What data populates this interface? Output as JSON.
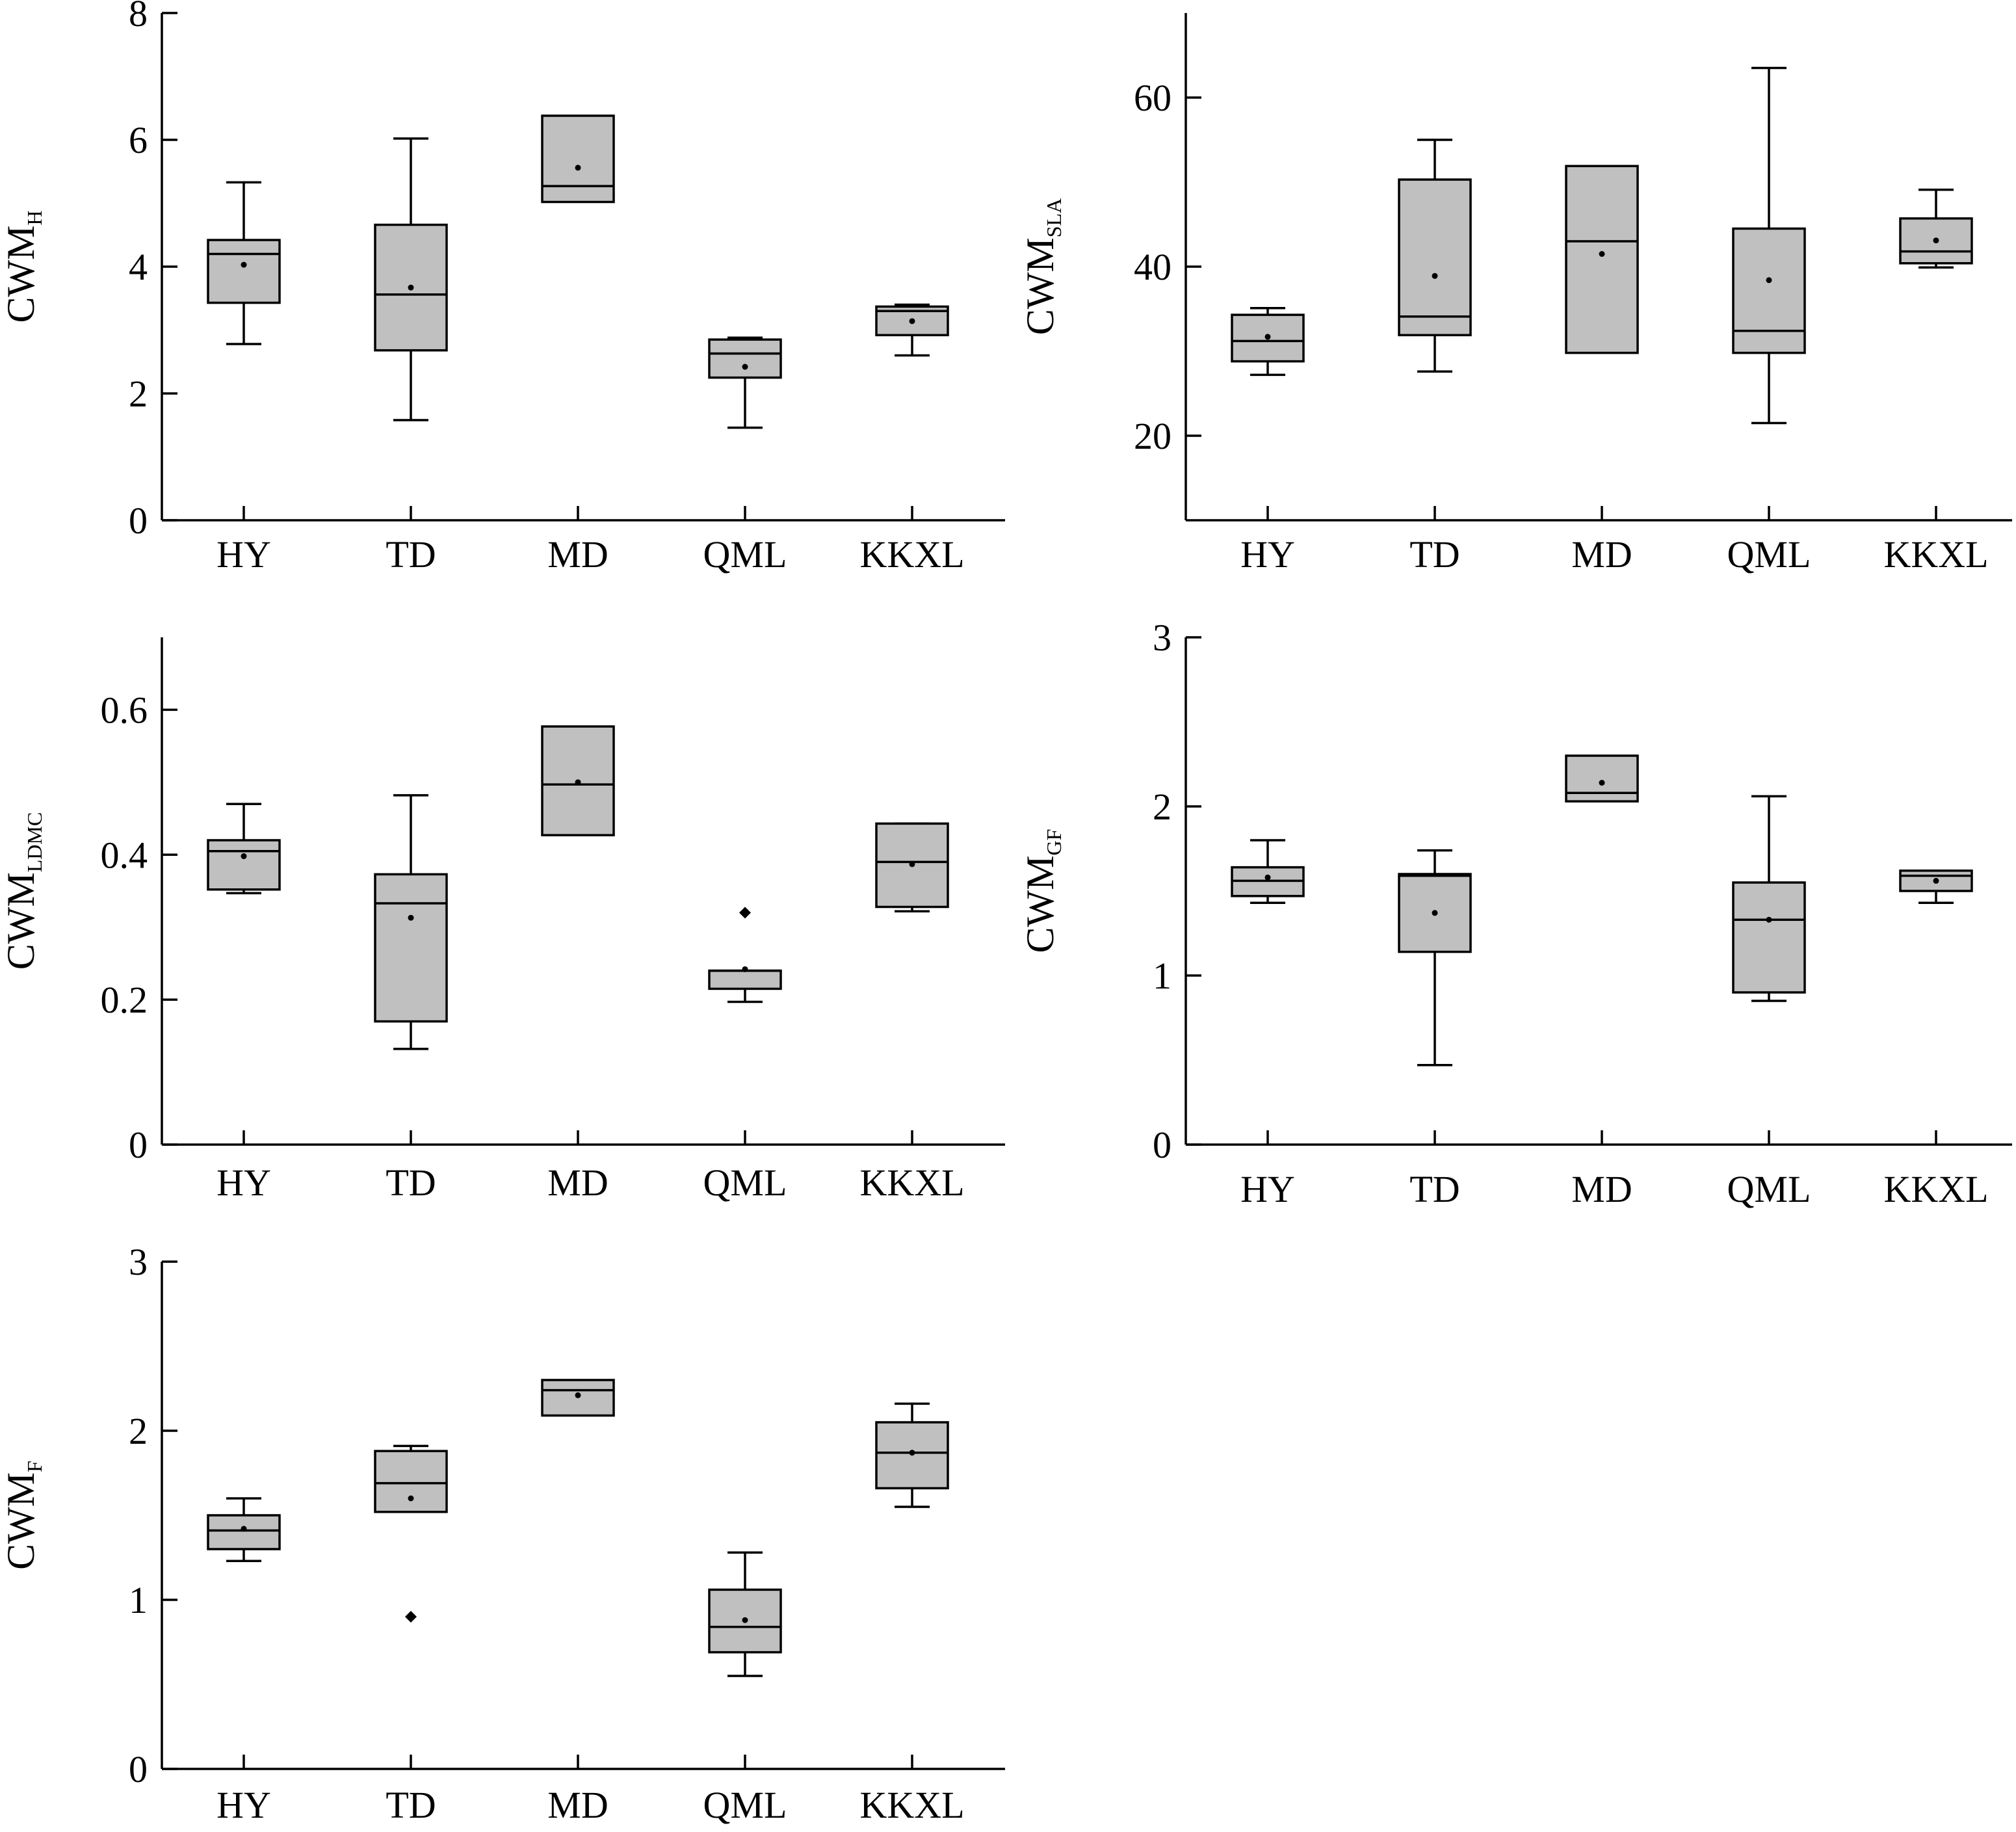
{
  "chart_data": [
    {
      "type": "box",
      "ylabel": "CWM",
      "ylabel_sub": "H",
      "ylim": [
        0,
        8
      ],
      "yticks": [
        0,
        2,
        4,
        6,
        8
      ],
      "categories": [
        "HY",
        "TD",
        "MD",
        "QML",
        "KKXL"
      ],
      "boxes": [
        {
          "min": 2.78,
          "q1": 3.43,
          "median": 4.2,
          "q3": 4.42,
          "max": 5.33,
          "mean": 4.03,
          "outliers": []
        },
        {
          "min": 1.58,
          "q1": 2.68,
          "median": 3.56,
          "q3": 4.66,
          "max": 6.02,
          "mean": 3.67,
          "outliers": []
        },
        {
          "min": null,
          "q1": 5.02,
          "median": 5.27,
          "q3": 6.38,
          "max": null,
          "mean": 5.56,
          "outliers": []
        },
        {
          "min": 1.46,
          "q1": 2.25,
          "median": 2.63,
          "q3": 2.85,
          "max": 2.88,
          "mean": 2.42,
          "outliers": []
        },
        {
          "min": 2.6,
          "q1": 2.92,
          "median": 3.3,
          "q3": 3.37,
          "max": 3.4,
          "mean": 3.14,
          "outliers": []
        }
      ]
    },
    {
      "type": "box",
      "ylabel": "CWM",
      "ylabel_sub": "SLA",
      "ylim": [
        10,
        70
      ],
      "yticks": [
        20,
        40,
        60
      ],
      "categories": [
        "HY",
        "TD",
        "MD",
        "QML",
        "KKXL"
      ],
      "boxes": [
        {
          "min": 27.2,
          "q1": 28.8,
          "median": 31.2,
          "q3": 34.3,
          "max": 35.1,
          "mean": 31.7,
          "outliers": []
        },
        {
          "min": 27.6,
          "q1": 31.9,
          "median": 34.1,
          "q3": 50.3,
          "max": 55.0,
          "mean": 38.9,
          "outliers": []
        },
        {
          "min": null,
          "q1": 29.8,
          "median": 43.0,
          "q3": 51.9,
          "max": null,
          "mean": 41.5,
          "outliers": []
        },
        {
          "min": 21.5,
          "q1": 29.8,
          "median": 32.4,
          "q3": 44.5,
          "max": 63.5,
          "mean": 38.4,
          "outliers": []
        },
        {
          "min": 39.9,
          "q1": 40.4,
          "median": 41.8,
          "q3": 45.7,
          "max": 49.1,
          "mean": 43.1,
          "outliers": []
        }
      ]
    },
    {
      "type": "box",
      "ylabel": "CWM",
      "ylabel_sub": "LDMC",
      "ylim": [
        0,
        0.7
      ],
      "yticks": [
        0,
        0.2,
        0.4,
        0.6
      ],
      "ytick_labels": [
        "0",
        "0.2",
        "0.4",
        "0.6"
      ],
      "categories": [
        "HY",
        "TD",
        "MD",
        "QML",
        "KKXL"
      ],
      "boxes": [
        {
          "min": 0.347,
          "q1": 0.352,
          "median": 0.405,
          "q3": 0.42,
          "max": 0.47,
          "mean": 0.398,
          "outliers": []
        },
        {
          "min": 0.132,
          "q1": 0.17,
          "median": 0.333,
          "q3": 0.373,
          "max": 0.482,
          "mean": 0.313,
          "outliers": []
        },
        {
          "min": null,
          "q1": 0.427,
          "median": 0.497,
          "q3": 0.577,
          "max": null,
          "mean": 0.5,
          "outliers": []
        },
        {
          "min": 0.197,
          "q1": 0.215,
          "median": 0.24,
          "q3": 0.24,
          "max": null,
          "mean": 0.242,
          "outliers": [
            0.32
          ]
        },
        {
          "min": 0.322,
          "q1": 0.328,
          "median": 0.39,
          "q3": 0.443,
          "max": 0.443,
          "mean": 0.387,
          "outliers": []
        }
      ]
    },
    {
      "type": "box",
      "ylabel": "CWM",
      "ylabel_sub": "GF",
      "ylim": [
        0,
        3
      ],
      "yticks": [
        0,
        1,
        2,
        3
      ],
      "categories": [
        "HY",
        "TD",
        "MD",
        "QML",
        "KKXL"
      ],
      "boxes": [
        {
          "min": 1.43,
          "q1": 1.47,
          "median": 1.56,
          "q3": 1.64,
          "max": 1.8,
          "mean": 1.58,
          "outliers": []
        },
        {
          "min": 0.47,
          "q1": 1.14,
          "median": 1.59,
          "q3": 1.6,
          "max": 1.74,
          "mean": 1.37,
          "outliers": []
        },
        {
          "min": null,
          "q1": 2.03,
          "median": 2.08,
          "q3": 2.3,
          "max": null,
          "mean": 2.14,
          "outliers": []
        },
        {
          "min": 0.85,
          "q1": 0.9,
          "median": 1.33,
          "q3": 1.55,
          "max": 2.06,
          "mean": 1.33,
          "outliers": []
        },
        {
          "min": 1.43,
          "q1": 1.5,
          "median": 1.59,
          "q3": 1.62,
          "max": 1.62,
          "mean": 1.56,
          "outliers": []
        }
      ]
    },
    {
      "type": "box",
      "ylabel": "CWM",
      "ylabel_sub": "F",
      "ylim": [
        0,
        3
      ],
      "yticks": [
        0,
        1,
        2,
        3
      ],
      "categories": [
        "HY",
        "TD",
        "MD",
        "QML",
        "KKXL"
      ],
      "boxes": [
        {
          "min": 1.23,
          "q1": 1.3,
          "median": 1.41,
          "q3": 1.5,
          "max": 1.6,
          "mean": 1.42,
          "outliers": []
        },
        {
          "min": null,
          "q1": 1.52,
          "median": 1.69,
          "q3": 1.88,
          "max": 1.91,
          "mean": 1.6,
          "outliers": [
            0.9
          ]
        },
        {
          "min": null,
          "q1": 2.09,
          "median": 2.24,
          "q3": 2.3,
          "max": null,
          "mean": 2.21,
          "outliers": []
        },
        {
          "min": 0.55,
          "q1": 0.69,
          "median": 0.84,
          "q3": 1.06,
          "max": 1.28,
          "mean": 0.88,
          "outliers": []
        },
        {
          "min": 1.55,
          "q1": 1.66,
          "median": 1.87,
          "q3": 2.05,
          "max": 2.16,
          "mean": 1.87,
          "outliers": []
        }
      ]
    }
  ]
}
